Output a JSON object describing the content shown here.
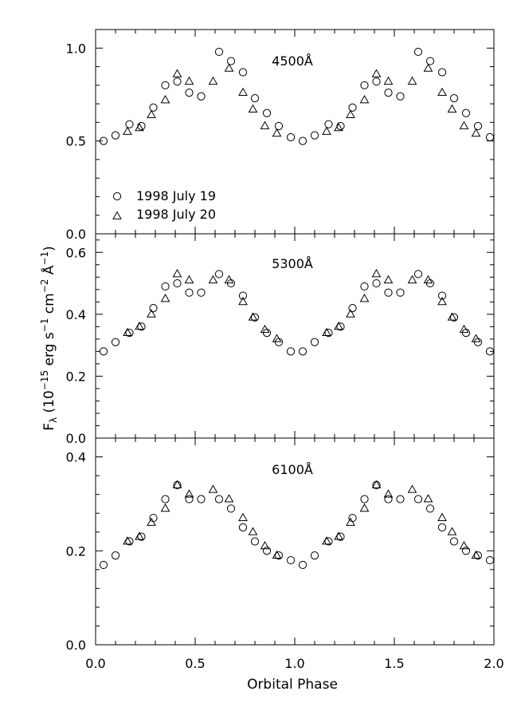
{
  "chart_data": {
    "type": "scatter",
    "xlabel": "Orbital Phase",
    "ylabel": "Fλ (10⁻¹⁵ erg s⁻¹ cm⁻² Å⁻¹)",
    "ylabel_parts": {
      "f": "F",
      "lambda": "λ",
      "open": " (10",
      "exp1": "−15",
      "erg": " erg s",
      "exp2": "−1",
      "cm": " cm",
      "exp3": "−2",
      "ang": " Å",
      "exp4": "−1",
      "close": ")"
    },
    "xlim": [
      0.0,
      2.0
    ],
    "xticks": [
      0.0,
      0.5,
      1.0,
      1.5,
      2.0
    ],
    "xtick_labels": [
      "0.0",
      "0.5",
      "1.0",
      "1.5",
      "2.0"
    ],
    "legend": {
      "placement": "lower-left of top panel",
      "entries": [
        {
          "marker": "circle",
          "label": "1998 July 19"
        },
        {
          "marker": "triangle",
          "label": "1998 July 20"
        }
      ]
    },
    "panels": [
      {
        "label": "4500Å",
        "ylim": [
          0.0,
          1.1
        ],
        "yticks": [
          0.0,
          0.5,
          1.0
        ],
        "ytick_labels": [
          "0.0",
          "0.5",
          "1.0"
        ],
        "circles": [
          [
            0.04,
            0.5
          ],
          [
            0.1,
            0.53
          ],
          [
            0.17,
            0.59
          ],
          [
            0.23,
            0.58
          ],
          [
            0.29,
            0.68
          ],
          [
            0.35,
            0.8
          ],
          [
            0.41,
            0.82
          ],
          [
            0.47,
            0.76
          ],
          [
            0.53,
            0.74
          ],
          [
            0.62,
            0.98
          ],
          [
            0.68,
            0.93
          ],
          [
            0.74,
            0.87
          ],
          [
            0.8,
            0.73
          ],
          [
            0.86,
            0.65
          ],
          [
            0.92,
            0.58
          ],
          [
            0.98,
            0.52
          ],
          [
            1.04,
            0.5
          ],
          [
            1.1,
            0.53
          ],
          [
            1.17,
            0.59
          ],
          [
            1.23,
            0.58
          ],
          [
            1.29,
            0.68
          ],
          [
            1.35,
            0.8
          ],
          [
            1.41,
            0.82
          ],
          [
            1.47,
            0.76
          ],
          [
            1.53,
            0.74
          ],
          [
            1.62,
            0.98
          ],
          [
            1.68,
            0.93
          ],
          [
            1.74,
            0.87
          ],
          [
            1.8,
            0.73
          ],
          [
            1.86,
            0.65
          ],
          [
            1.92,
            0.58
          ],
          [
            1.98,
            0.52
          ]
        ],
        "triangles": [
          [
            0.16,
            0.55
          ],
          [
            0.22,
            0.57
          ],
          [
            0.28,
            0.64
          ],
          [
            0.35,
            0.72
          ],
          [
            0.41,
            0.86
          ],
          [
            0.47,
            0.82
          ],
          [
            0.59,
            0.82
          ],
          [
            0.67,
            0.89
          ],
          [
            0.74,
            0.76
          ],
          [
            0.79,
            0.67
          ],
          [
            0.85,
            0.58
          ],
          [
            0.91,
            0.54
          ],
          [
            1.16,
            0.55
          ],
          [
            1.22,
            0.57
          ],
          [
            1.28,
            0.64
          ],
          [
            1.35,
            0.72
          ],
          [
            1.41,
            0.86
          ],
          [
            1.47,
            0.82
          ],
          [
            1.59,
            0.82
          ],
          [
            1.67,
            0.89
          ],
          [
            1.74,
            0.76
          ],
          [
            1.79,
            0.67
          ],
          [
            1.85,
            0.58
          ],
          [
            1.91,
            0.54
          ]
        ]
      },
      {
        "label": "5300Å",
        "ylim": [
          0.0,
          0.66
        ],
        "yticks": [
          0.0,
          0.2,
          0.4,
          0.6
        ],
        "ytick_labels": [
          "0.0",
          "0.2",
          "0.4",
          "0.6"
        ],
        "circles": [
          [
            0.04,
            0.28
          ],
          [
            0.1,
            0.31
          ],
          [
            0.17,
            0.34
          ],
          [
            0.23,
            0.36
          ],
          [
            0.29,
            0.42
          ],
          [
            0.35,
            0.49
          ],
          [
            0.41,
            0.5
          ],
          [
            0.47,
            0.47
          ],
          [
            0.53,
            0.47
          ],
          [
            0.62,
            0.53
          ],
          [
            0.68,
            0.5
          ],
          [
            0.74,
            0.46
          ],
          [
            0.8,
            0.39
          ],
          [
            0.86,
            0.34
          ],
          [
            0.92,
            0.31
          ],
          [
            0.98,
            0.28
          ],
          [
            1.04,
            0.28
          ],
          [
            1.1,
            0.31
          ],
          [
            1.17,
            0.34
          ],
          [
            1.23,
            0.36
          ],
          [
            1.29,
            0.42
          ],
          [
            1.35,
            0.49
          ],
          [
            1.41,
            0.5
          ],
          [
            1.47,
            0.47
          ],
          [
            1.53,
            0.47
          ],
          [
            1.62,
            0.53
          ],
          [
            1.68,
            0.5
          ],
          [
            1.74,
            0.46
          ],
          [
            1.8,
            0.39
          ],
          [
            1.86,
            0.34
          ],
          [
            1.92,
            0.31
          ],
          [
            1.98,
            0.28
          ]
        ],
        "triangles": [
          [
            0.16,
            0.34
          ],
          [
            0.22,
            0.36
          ],
          [
            0.28,
            0.4
          ],
          [
            0.35,
            0.45
          ],
          [
            0.41,
            0.53
          ],
          [
            0.47,
            0.51
          ],
          [
            0.59,
            0.51
          ],
          [
            0.67,
            0.51
          ],
          [
            0.74,
            0.44
          ],
          [
            0.79,
            0.39
          ],
          [
            0.85,
            0.35
          ],
          [
            0.91,
            0.32
          ],
          [
            1.16,
            0.34
          ],
          [
            1.22,
            0.36
          ],
          [
            1.28,
            0.4
          ],
          [
            1.35,
            0.45
          ],
          [
            1.41,
            0.53
          ],
          [
            1.47,
            0.51
          ],
          [
            1.59,
            0.51
          ],
          [
            1.67,
            0.51
          ],
          [
            1.74,
            0.44
          ],
          [
            1.79,
            0.39
          ],
          [
            1.85,
            0.35
          ],
          [
            1.91,
            0.32
          ]
        ]
      },
      {
        "label": "6100Å",
        "ylim": [
          0.0,
          0.44
        ],
        "yticks": [
          0.0,
          0.2,
          0.4
        ],
        "ytick_labels": [
          "0.0",
          "0.2",
          "0.4"
        ],
        "circles": [
          [
            0.04,
            0.17
          ],
          [
            0.1,
            0.19
          ],
          [
            0.17,
            0.22
          ],
          [
            0.23,
            0.23
          ],
          [
            0.29,
            0.27
          ],
          [
            0.35,
            0.31
          ],
          [
            0.41,
            0.34
          ],
          [
            0.47,
            0.31
          ],
          [
            0.53,
            0.31
          ],
          [
            0.62,
            0.31
          ],
          [
            0.68,
            0.29
          ],
          [
            0.74,
            0.25
          ],
          [
            0.8,
            0.22
          ],
          [
            0.86,
            0.2
          ],
          [
            0.92,
            0.19
          ],
          [
            0.98,
            0.18
          ],
          [
            1.04,
            0.17
          ],
          [
            1.1,
            0.19
          ],
          [
            1.17,
            0.22
          ],
          [
            1.23,
            0.23
          ],
          [
            1.29,
            0.27
          ],
          [
            1.35,
            0.31
          ],
          [
            1.41,
            0.34
          ],
          [
            1.47,
            0.31
          ],
          [
            1.53,
            0.31
          ],
          [
            1.62,
            0.31
          ],
          [
            1.68,
            0.29
          ],
          [
            1.74,
            0.25
          ],
          [
            1.8,
            0.22
          ],
          [
            1.86,
            0.2
          ],
          [
            1.92,
            0.19
          ],
          [
            1.98,
            0.18
          ]
        ],
        "triangles": [
          [
            0.16,
            0.22
          ],
          [
            0.22,
            0.23
          ],
          [
            0.28,
            0.26
          ],
          [
            0.35,
            0.29
          ],
          [
            0.41,
            0.34
          ],
          [
            0.47,
            0.32
          ],
          [
            0.59,
            0.33
          ],
          [
            0.67,
            0.31
          ],
          [
            0.74,
            0.27
          ],
          [
            0.79,
            0.24
          ],
          [
            0.85,
            0.21
          ],
          [
            0.91,
            0.19
          ],
          [
            1.16,
            0.22
          ],
          [
            1.22,
            0.23
          ],
          [
            1.28,
            0.26
          ],
          [
            1.35,
            0.29
          ],
          [
            1.41,
            0.34
          ],
          [
            1.47,
            0.32
          ],
          [
            1.59,
            0.33
          ],
          [
            1.67,
            0.31
          ],
          [
            1.74,
            0.27
          ],
          [
            1.79,
            0.24
          ],
          [
            1.85,
            0.21
          ],
          [
            1.91,
            0.19
          ]
        ]
      }
    ]
  }
}
